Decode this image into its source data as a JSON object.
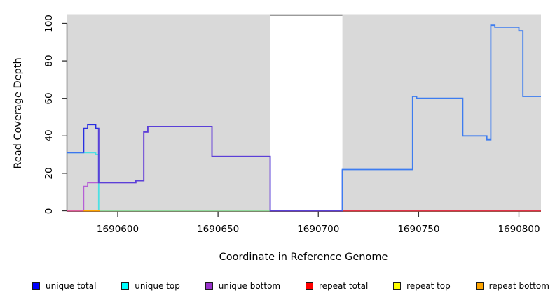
{
  "axes": {
    "x": {
      "title": "Coordinate in Reference Genome"
    },
    "y": {
      "title": "Read Coverage Depth"
    }
  },
  "chart_data": {
    "type": "line",
    "step": true,
    "title": "",
    "xlabel": "Coordinate in Reference Genome",
    "ylabel": "Read Coverage Depth",
    "xlim": [
      1690574.5,
      1690811
    ],
    "ylim": [
      0,
      105
    ],
    "x_ticks": [
      1690600,
      1690650,
      1690700,
      1690750,
      1690800
    ],
    "y_ticks": [
      0,
      20,
      40,
      60,
      80,
      100
    ],
    "grid": false,
    "plot_bg": "#d9d9d9",
    "white_region": {
      "from": 1690676,
      "to": 1690712,
      "fill": "#ffffff",
      "top_border_color": "#8c8c8c"
    },
    "series": [
      {
        "name": "unique top",
        "line_color": "#4ce0e4",
        "points": [
          [
            1690574.5,
            31
          ],
          [
            1690589,
            30
          ],
          [
            1690590.5,
            0
          ],
          [
            1690811,
            0
          ]
        ]
      },
      {
        "name": "unique bottom",
        "line_color": "#b55fd6",
        "points": [
          [
            1690574.5,
            0
          ],
          [
            1690583,
            13
          ],
          [
            1690585,
            15
          ],
          [
            1690590.5,
            15
          ],
          [
            1690609,
            16
          ],
          [
            1690613,
            42
          ],
          [
            1690615,
            45
          ],
          [
            1690647,
            29
          ],
          [
            1690676,
            0
          ],
          [
            1690811,
            0
          ]
        ]
      },
      {
        "name": "repeat top",
        "line_color": "#ffff00",
        "points": [
          [
            1690574.5,
            0
          ],
          [
            1690811,
            0
          ]
        ]
      },
      {
        "name": "repeat bottom",
        "line_color": "#ffa500",
        "points": [
          [
            1690574.5,
            0
          ],
          [
            1690811,
            0
          ]
        ]
      },
      {
        "name": "repeat total",
        "line_color": "#e23148",
        "points": [
          [
            1690574.5,
            0
          ],
          [
            1690811,
            0
          ]
        ]
      },
      {
        "name": "unique total",
        "line_color": "#3c74ee",
        "points": [
          [
            1690574.5,
            31
          ],
          [
            1690583,
            44
          ],
          [
            1690585,
            46
          ],
          [
            1690589,
            44
          ],
          [
            1690590.5,
            15
          ],
          [
            1690609,
            16
          ],
          [
            1690613,
            42
          ],
          [
            1690615,
            45
          ],
          [
            1690647,
            29
          ],
          [
            1690676,
            0
          ],
          [
            1690712,
            22
          ],
          [
            1690747,
            61
          ],
          [
            1690749,
            60
          ],
          [
            1690772,
            40
          ],
          [
            1690784,
            38
          ],
          [
            1690786,
            99
          ],
          [
            1690788,
            98
          ],
          [
            1690800,
            96
          ],
          [
            1690802,
            61
          ],
          [
            1690811,
            61
          ]
        ],
        "color_segments": [
          {
            "until": 1690583,
            "color": "#3c74ee"
          },
          {
            "until": 1690590.5,
            "color": "#2a2ee0"
          },
          {
            "until": 1690712,
            "color": "#5a40d8"
          },
          {
            "until": 1690811,
            "color": "#3d7cf0"
          }
        ]
      }
    ],
    "baseline_overlay_segments": [
      {
        "from": 1690574.5,
        "to": 1690583,
        "color": "#e0609f"
      },
      {
        "from": 1690583,
        "to": 1690591,
        "color": "#ffa500"
      },
      {
        "from": 1690591,
        "to": 1690676,
        "color": "#8fd89b"
      }
    ]
  },
  "legend": {
    "items": [
      {
        "label": "unique total",
        "color": "#0000ff"
      },
      {
        "label": "unique top",
        "color": "#00ffff"
      },
      {
        "label": "unique bottom",
        "color": "#9932cc"
      },
      {
        "label": "repeat total",
        "color": "#ff0000"
      },
      {
        "label": "repeat top",
        "color": "#ffff00"
      },
      {
        "label": "repeat bottom",
        "color": "#ffa500"
      }
    ]
  }
}
